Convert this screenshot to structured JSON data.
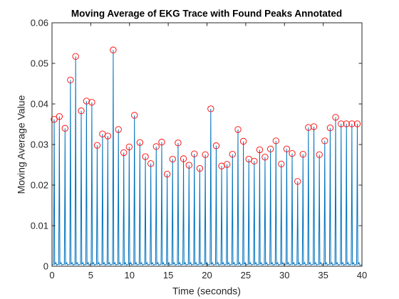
{
  "colors": {
    "line": "#0072BD",
    "marker": "#FF0000",
    "axis": "#262626"
  },
  "chart_data": {
    "type": "line",
    "title": "Moving Average of EKG Trace with Found Peaks Annotated",
    "xlabel": "Time (seconds)",
    "ylabel": "Moving Average Value",
    "xlim": [
      0,
      40
    ],
    "ylim": [
      0,
      0.06
    ],
    "xticks": [
      0,
      5,
      10,
      15,
      20,
      25,
      30,
      35,
      40
    ],
    "yticks": [
      0,
      0.01,
      0.02,
      0.03,
      0.04,
      0.05,
      0.06
    ],
    "xtick_labels": [
      "0",
      "5",
      "10",
      "15",
      "20",
      "25",
      "30",
      "35",
      "40"
    ],
    "ytick_labels": [
      "0",
      "0.01",
      "0.02",
      "0.03",
      "0.04",
      "0.05",
      "0.06"
    ],
    "grid": false,
    "legend": "none",
    "series": [
      {
        "style": "line",
        "peaks": {
          "x": [
            0.28,
            0.95,
            1.68,
            2.38,
            3.05,
            3.77,
            4.45,
            5.14,
            5.83,
            6.52,
            7.2,
            7.9,
            8.57,
            9.26,
            9.96,
            10.64,
            11.34,
            12.05,
            12.75,
            13.45,
            14.16,
            14.86,
            15.56,
            16.27,
            16.97,
            17.68,
            18.37,
            19.07,
            19.78,
            20.49,
            21.19,
            21.89,
            22.59,
            23.29,
            24.0,
            24.7,
            25.4,
            26.1,
            26.8,
            27.49,
            28.2,
            28.9,
            29.59,
            30.29,
            30.99,
            31.7,
            32.39,
            33.09,
            33.8,
            34.5,
            35.2,
            35.9,
            36.6,
            37.31,
            38.0,
            38.7,
            39.4
          ],
          "y": [
            0.0362,
            0.0369,
            0.034,
            0.0459,
            0.0517,
            0.0383,
            0.0407,
            0.0404,
            0.0298,
            0.0326,
            0.0321,
            0.0533,
            0.0337,
            0.028,
            0.0294,
            0.0372,
            0.0305,
            0.027,
            0.0253,
            0.0295,
            0.0306,
            0.0227,
            0.0264,
            0.0304,
            0.0265,
            0.0249,
            0.0277,
            0.0241,
            0.0275,
            0.0388,
            0.0297,
            0.0247,
            0.0251,
            0.0276,
            0.0337,
            0.0308,
            0.0264,
            0.0259,
            0.0287,
            0.0269,
            0.0289,
            0.0309,
            0.0252,
            0.0289,
            0.0278,
            0.0209,
            0.0276,
            0.0342,
            0.0344,
            0.0275,
            0.0309,
            0.0341,
            0.0367,
            0.0351,
            0.0351,
            0.0351,
            0.0351
          ]
        }
      },
      {
        "style": "marker",
        "marker": "circle",
        "x": [
          0.28,
          0.95,
          1.68,
          2.38,
          3.05,
          3.77,
          4.45,
          5.14,
          5.83,
          6.52,
          7.2,
          7.9,
          8.57,
          9.26,
          9.96,
          10.64,
          11.34,
          12.05,
          12.75,
          13.45,
          14.16,
          14.86,
          15.56,
          16.27,
          16.97,
          17.68,
          18.37,
          19.07,
          19.78,
          20.49,
          21.19,
          21.89,
          22.59,
          23.29,
          24.0,
          24.7,
          25.4,
          26.1,
          26.8,
          27.49,
          28.2,
          28.9,
          29.59,
          30.29,
          30.99,
          31.7,
          32.39,
          33.09,
          33.8,
          34.5,
          35.2,
          35.9,
          36.6,
          37.31,
          38.0,
          38.7,
          39.4
        ],
        "y": [
          0.0362,
          0.0369,
          0.034,
          0.0459,
          0.0517,
          0.0383,
          0.0407,
          0.0404,
          0.0298,
          0.0326,
          0.0321,
          0.0533,
          0.0337,
          0.028,
          0.0294,
          0.0372,
          0.0305,
          0.027,
          0.0253,
          0.0295,
          0.0306,
          0.0227,
          0.0264,
          0.0304,
          0.0265,
          0.0249,
          0.0277,
          0.0241,
          0.0275,
          0.0388,
          0.0297,
          0.0247,
          0.0251,
          0.0276,
          0.0337,
          0.0308,
          0.0264,
          0.0259,
          0.0287,
          0.0269,
          0.0289,
          0.0309,
          0.0252,
          0.0289,
          0.0278,
          0.0209,
          0.0276,
          0.0342,
          0.0344,
          0.0275,
          0.0309,
          0.0341,
          0.0367,
          0.0351,
          0.0351,
          0.0351,
          0.0351
        ]
      }
    ]
  }
}
